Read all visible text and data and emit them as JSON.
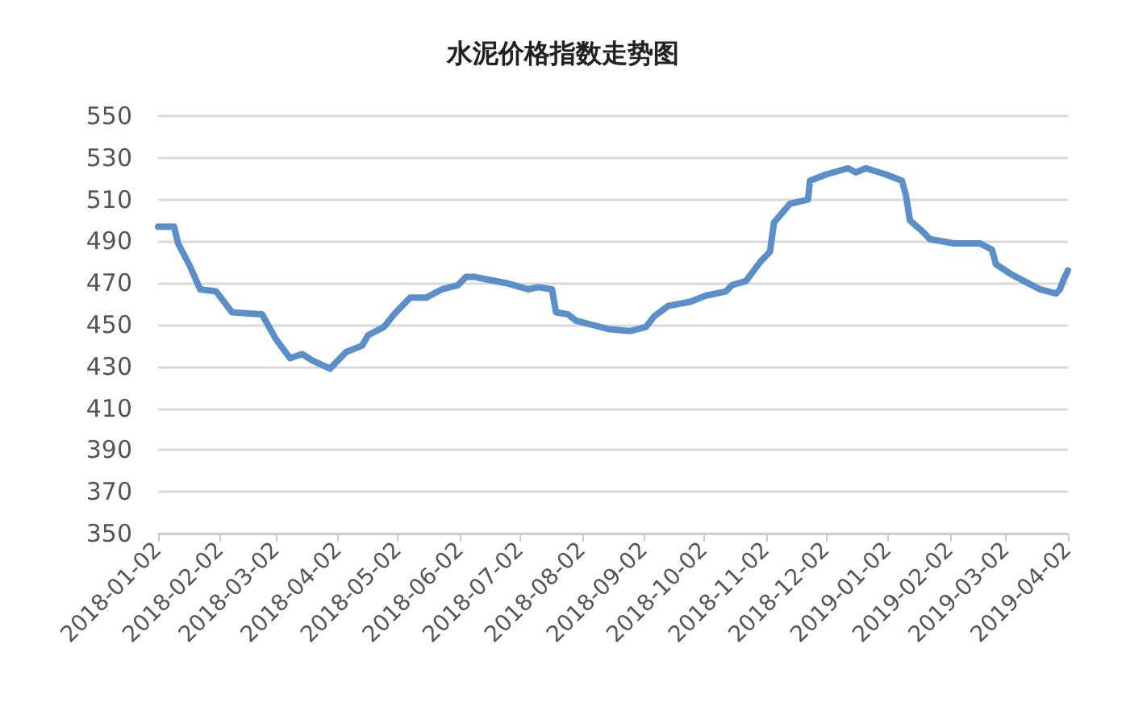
{
  "chart_data": {
    "type": "line",
    "title": "水泥价格指数走势图",
    "x": [
      "2018-01-02",
      "2018-01-10",
      "2018-01-12",
      "2018-01-18",
      "2018-01-23",
      "2018-01-31",
      "2018-02-08",
      "2018-02-23",
      "2018-03-02",
      "2018-03-09",
      "2018-03-15",
      "2018-03-20",
      "2018-03-29",
      "2018-04-06",
      "2018-04-14",
      "2018-04-17",
      "2018-04-25",
      "2018-04-30",
      "2018-05-08",
      "2018-05-16",
      "2018-05-24",
      "2018-06-01",
      "2018-06-05",
      "2018-06-09",
      "2018-06-14",
      "2018-06-25",
      "2018-07-06",
      "2018-07-11",
      "2018-07-18",
      "2018-07-20",
      "2018-07-26",
      "2018-07-30",
      "2018-08-07",
      "2018-08-15",
      "2018-08-26",
      "2018-09-03",
      "2018-09-07",
      "2018-09-14",
      "2018-09-25",
      "2018-10-03",
      "2018-10-13",
      "2018-10-16",
      "2018-10-23",
      "2018-10-30",
      "2018-11-04",
      "2018-11-06",
      "2018-11-14",
      "2018-11-23",
      "2018-11-24",
      "2018-12-02",
      "2018-12-13",
      "2018-12-17",
      "2018-12-22",
      "2019-01-01",
      "2019-01-09",
      "2019-01-11",
      "2019-01-13",
      "2019-01-19",
      "2019-01-23",
      "2019-02-04",
      "2019-02-17",
      "2019-02-23",
      "2019-02-25",
      "2019-03-05",
      "2019-03-11",
      "2019-03-19",
      "2019-03-27",
      "2019-03-29",
      "2019-03-31",
      "2019-04-02"
    ],
    "series": [
      {
        "color": "#5b8fc9",
        "values": [
          497,
          497,
          489,
          478,
          467,
          466,
          456,
          455,
          443,
          434,
          436,
          433,
          429,
          437,
          440,
          445,
          449,
          455,
          463,
          463,
          467,
          469,
          473,
          473,
          472,
          470,
          467,
          468,
          467,
          456,
          455,
          452,
          450,
          448,
          447,
          449,
          454,
          459,
          461,
          464,
          466,
          469,
          471,
          480,
          485,
          499,
          508,
          510,
          519,
          522,
          525,
          523,
          525,
          522,
          519,
          512,
          500,
          495,
          491,
          489,
          489,
          486,
          479,
          474,
          471,
          467,
          465,
          467,
          472,
          476
        ]
      }
    ],
    "xlim": [
      "2018-01-02",
      "2019-04-02"
    ],
    "xticks": [
      "2018-01-02",
      "2018-02-02",
      "2018-03-02",
      "2018-04-02",
      "2018-05-02",
      "2018-06-02",
      "2018-07-02",
      "2018-08-02",
      "2018-09-02",
      "2018-10-02",
      "2018-11-02",
      "2018-12-02",
      "2019-01-02",
      "2019-02-02",
      "2019-03-02",
      "2019-04-02"
    ],
    "ylim": [
      350,
      550
    ],
    "yticks": [
      350,
      370,
      390,
      410,
      430,
      450,
      470,
      490,
      510,
      530,
      550
    ],
    "grid": "y",
    "marker": "none",
    "line_style": "solid"
  }
}
